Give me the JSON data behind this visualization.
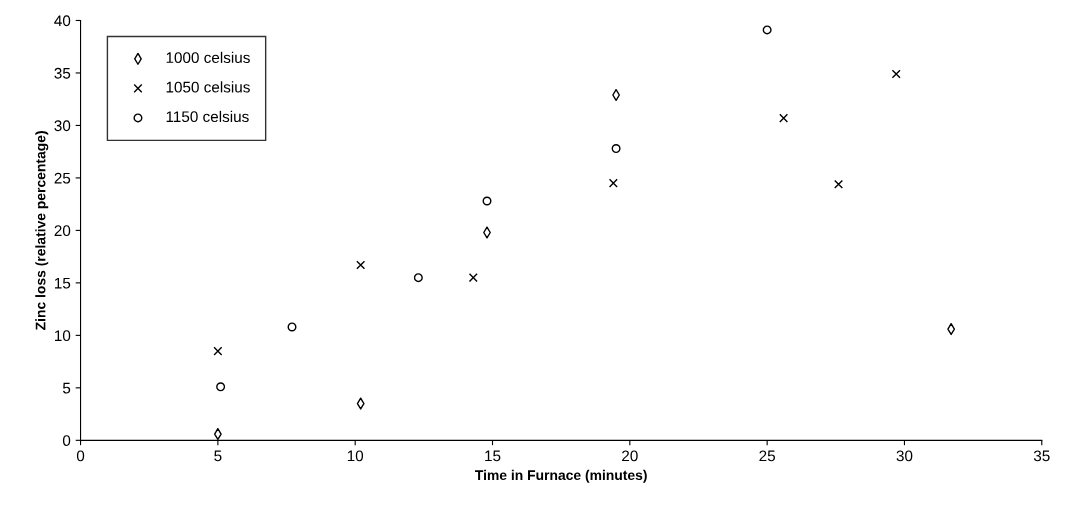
{
  "chart_data": {
    "type": "scatter",
    "xlabel": "Time in Furnace (minutes)",
    "ylabel": "Zinc loss (relative percentage)",
    "xlim": [
      0,
      35
    ],
    "xticks": [
      0,
      5,
      10,
      15,
      20,
      25,
      30,
      35
    ],
    "ylim": [
      0,
      40
    ],
    "yticks": [
      0,
      5,
      10,
      15,
      20,
      25,
      30,
      35,
      40
    ],
    "grid": false,
    "legend": "top left",
    "series": [
      {
        "name": "1000 celsius",
        "color": "#000000",
        "marker": "diamond",
        "x": [
          5,
          10.2,
          14.8,
          19.5,
          31.7
        ],
        "values": [
          0.6,
          3.5,
          19.8,
          32.9,
          10.6
        ]
      },
      {
        "name": "1050 celsius",
        "color": "#000000",
        "marker": "cross",
        "x": [
          5,
          10.2,
          14.3,
          19.4,
          25.6,
          27.6,
          29.7
        ],
        "values": [
          8.5,
          16.7,
          15.5,
          24.5,
          30.7,
          24.4,
          34.9
        ]
      },
      {
        "name": "1150 celsius",
        "color": "#000000",
        "marker": "circle",
        "x": [
          5.1,
          7.7,
          12.3,
          14.8,
          19.5,
          25.0
        ],
        "values": [
          5.1,
          10.8,
          15.5,
          22.8,
          27.8,
          39.1
        ]
      }
    ]
  }
}
